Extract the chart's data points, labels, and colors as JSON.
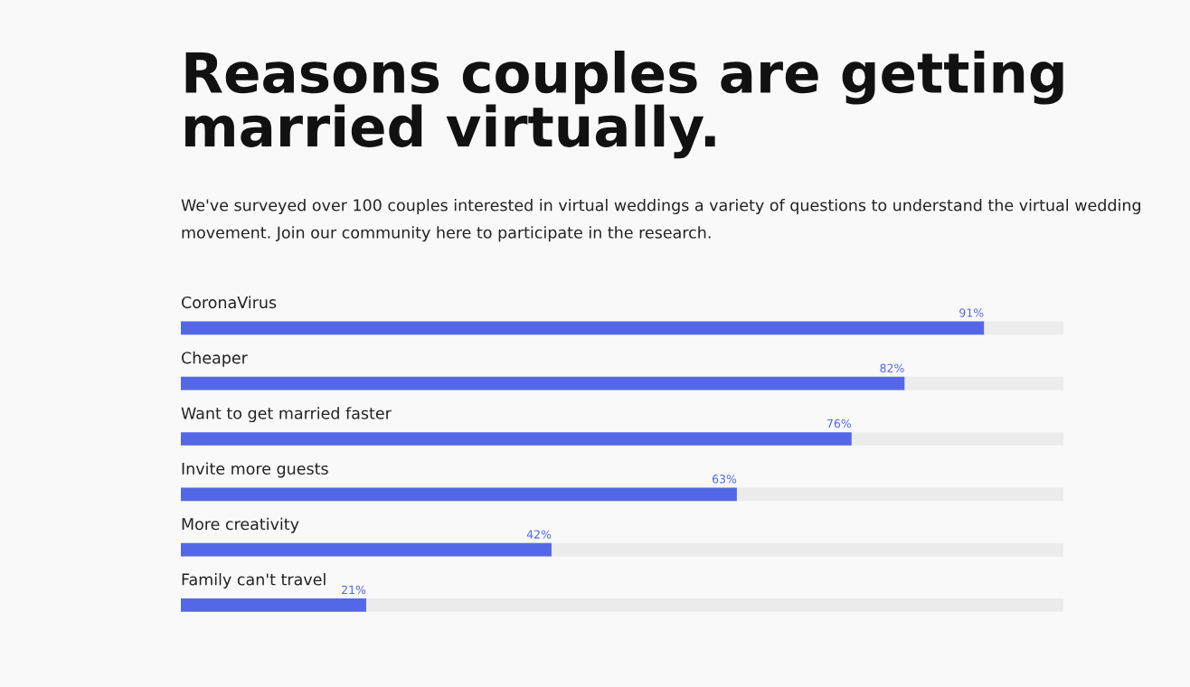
{
  "chart_data": {
    "type": "bar",
    "orientation": "horizontal",
    "title": "Reasons couples are getting married virtually.",
    "subtitle": "We've surveyed over 100 couples interested in virtual weddings a variety of questions to understand the virtual wedding movement. Join our community here to participate in the research.",
    "categories": [
      "CoronaVirus",
      "Cheaper",
      "Want to get married faster",
      "Invite more guests",
      "More creativity",
      "Family can't travel"
    ],
    "values": [
      91,
      82,
      76,
      63,
      42,
      21
    ],
    "value_labels": [
      "91%",
      "82%",
      "76%",
      "63%",
      "42%",
      "21%"
    ],
    "color": "#5468e7",
    "xlim": [
      0,
      100
    ]
  }
}
